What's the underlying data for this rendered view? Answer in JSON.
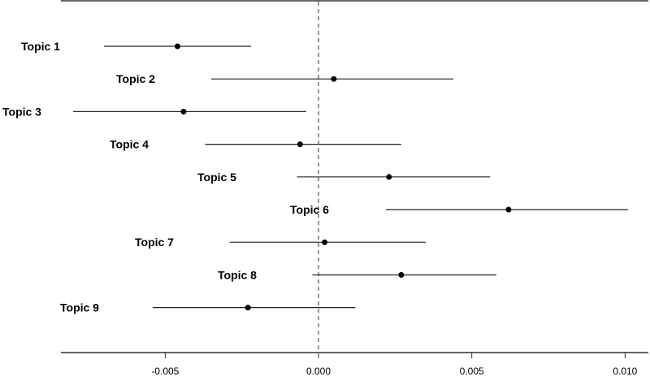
{
  "chart_data": {
    "type": "coefficient-plot",
    "title": "",
    "xlabel": "",
    "ylabel": "",
    "xlim": [
      -0.0085,
      0.0108
    ],
    "x_ticks": [
      -0.005,
      0.0,
      0.005,
      0.01
    ],
    "x_tick_labels": [
      "-0.005",
      "0.000",
      "0.005",
      "0.010"
    ],
    "reference_line": 0.0,
    "grid": false,
    "series": [
      {
        "label": "Topic 1",
        "estimate": -0.0046,
        "lower": -0.007,
        "upper": -0.0022
      },
      {
        "label": "Topic 2",
        "estimate": 0.0005,
        "lower": -0.0035,
        "upper": 0.0044
      },
      {
        "label": "Topic 3",
        "estimate": -0.0044,
        "lower": -0.008,
        "upper": -0.0004
      },
      {
        "label": "Topic 4",
        "estimate": -0.0006,
        "lower": -0.0037,
        "upper": 0.0027
      },
      {
        "label": "Topic 5",
        "estimate": 0.0023,
        "lower": -0.0007,
        "upper": 0.0056
      },
      {
        "label": "Topic 6",
        "estimate": 0.0062,
        "lower": 0.0022,
        "upper": 0.0101
      },
      {
        "label": "Topic 7",
        "estimate": 0.0002,
        "lower": -0.0029,
        "upper": 0.0035
      },
      {
        "label": "Topic 8",
        "estimate": 0.0027,
        "lower": -0.0002,
        "upper": 0.0058
      },
      {
        "label": "Topic 9",
        "estimate": -0.0023,
        "lower": -0.0054,
        "upper": 0.0012
      }
    ]
  }
}
